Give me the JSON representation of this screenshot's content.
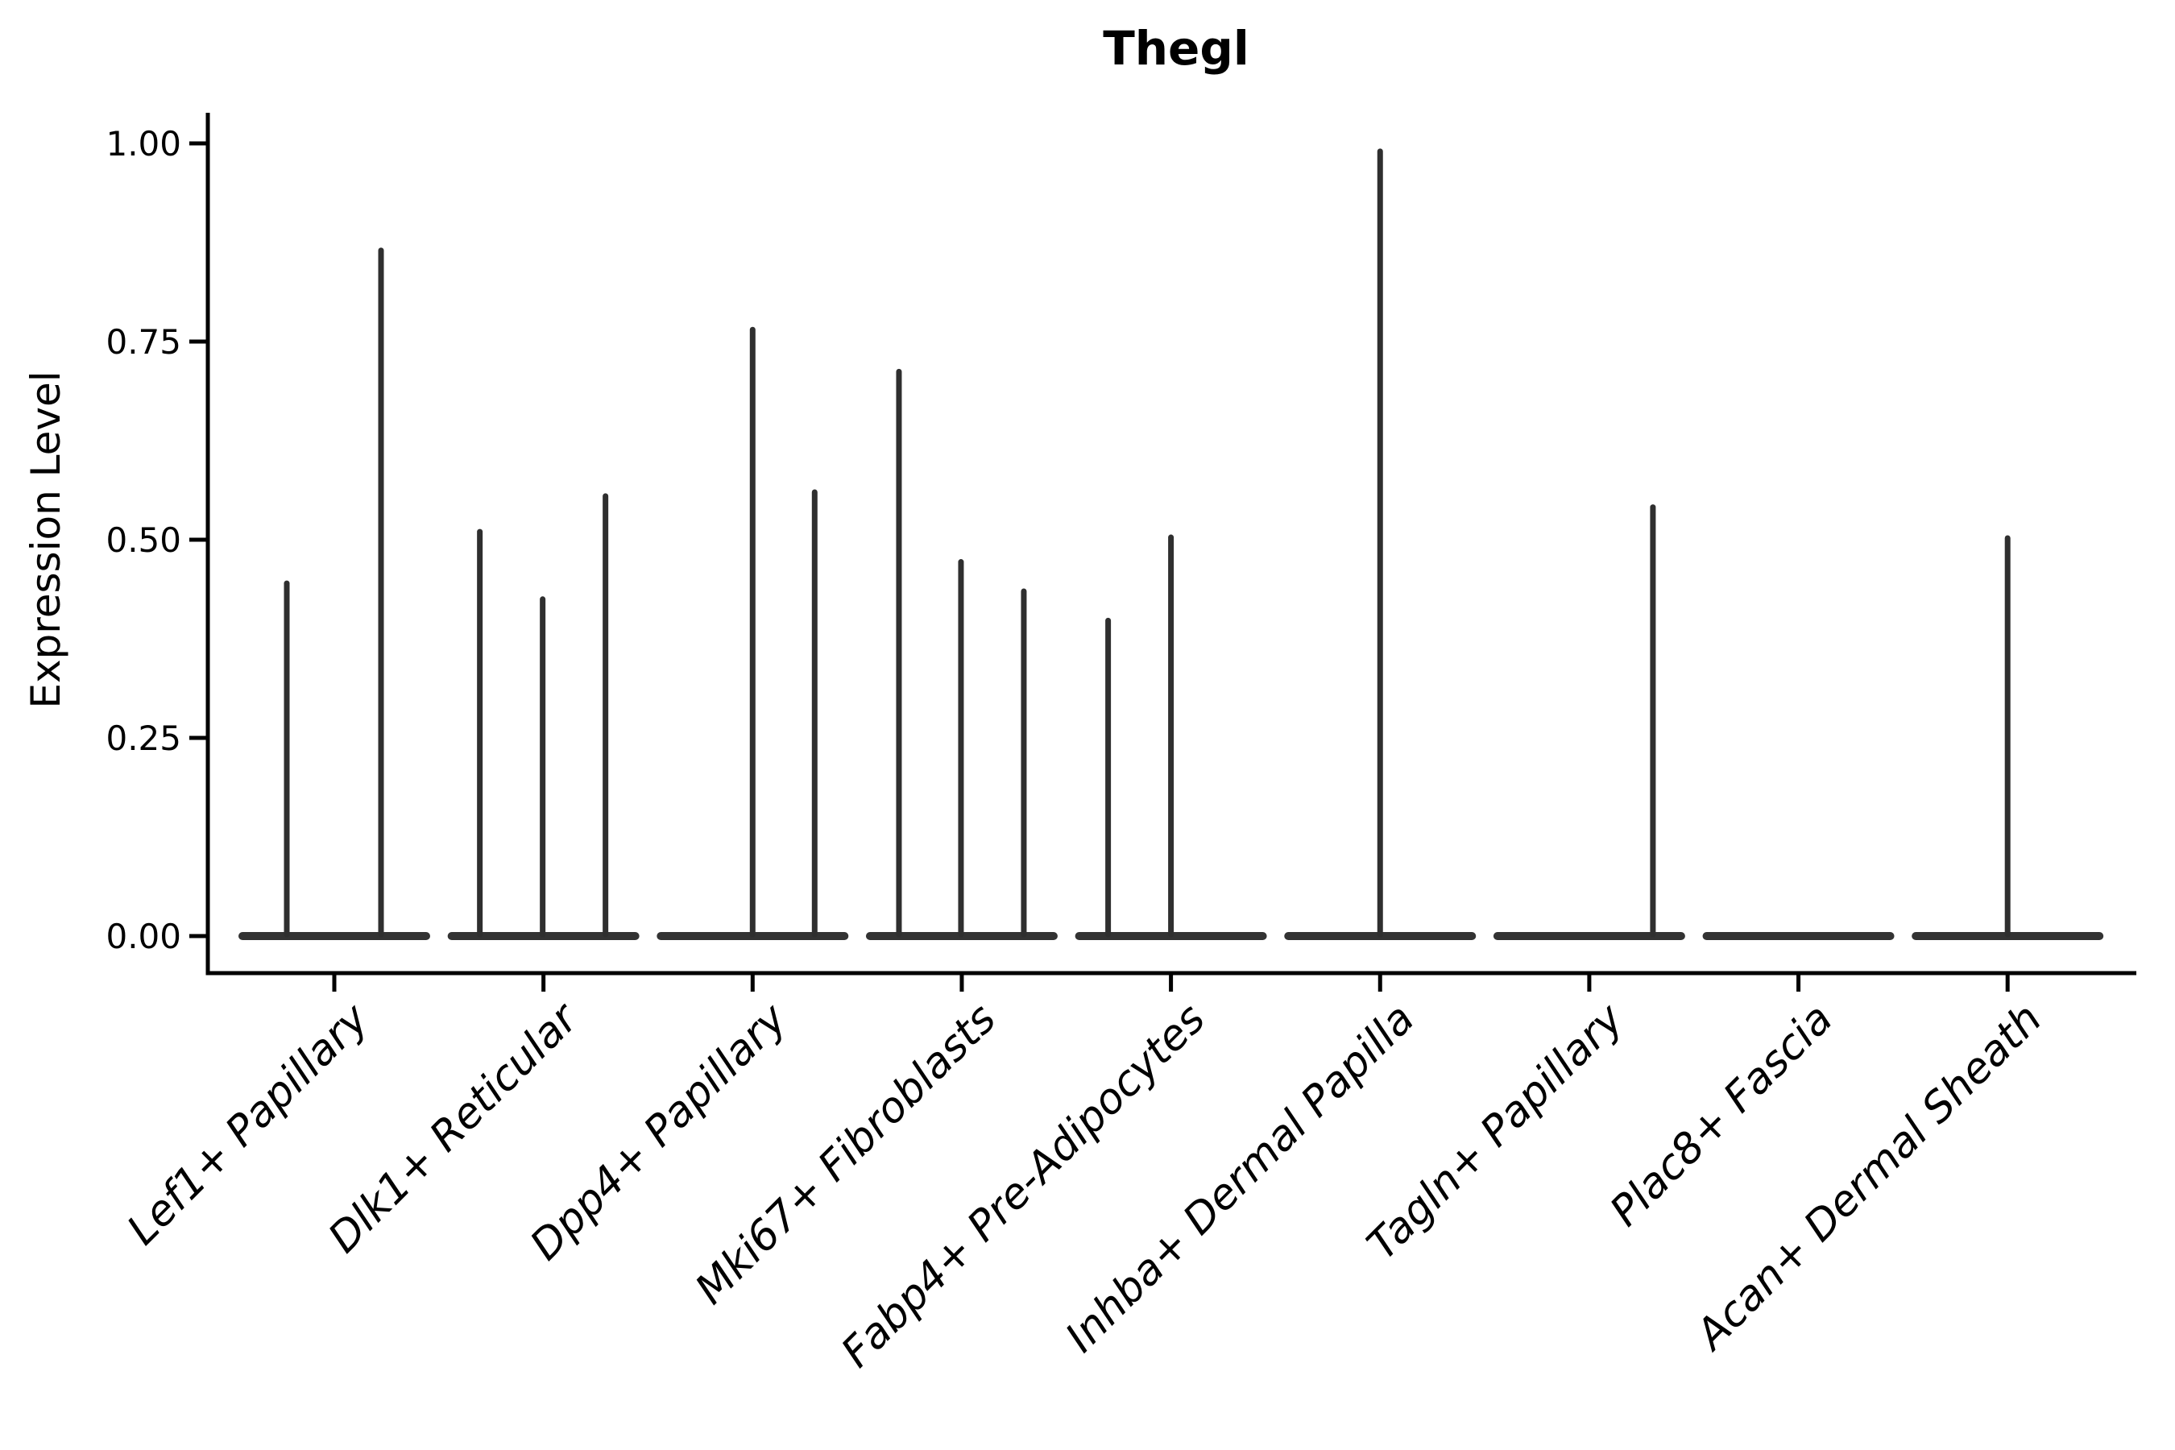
{
  "chart_data": {
    "type": "violin",
    "title": "Thegl",
    "xlabel": "",
    "ylabel": "Expression Level",
    "ylim": [
      0,
      1.05
    ],
    "yticks": {
      "values": [
        0.0,
        0.25,
        0.5,
        0.75,
        1.0
      ],
      "labels": [
        "0.00",
        "0.25",
        "0.50",
        "0.75",
        "1.00"
      ]
    },
    "grid": false,
    "legend": "none",
    "style_note": "needle-thin violins with wide flat bases at zero expression",
    "colors": {
      "violin": "#2f2f2f",
      "violin_base": "#333333",
      "axis": "#000000",
      "text": "#000000",
      "background": "#ffffff"
    },
    "categories": [
      {
        "label": "Lef1+ Papillary",
        "spikes": [
          {
            "dx": -59,
            "value": 0.445
          },
          {
            "dx": 58,
            "value": 0.865
          }
        ]
      },
      {
        "label": "Dlk1+ Reticular",
        "spikes": [
          {
            "dx": -79,
            "value": 0.51
          },
          {
            "dx": -1,
            "value": 0.425
          },
          {
            "dx": 77,
            "value": 0.555
          }
        ]
      },
      {
        "label": "Dpp4+ Papillary",
        "spikes": [
          {
            "dx": 0,
            "value": 0.765
          },
          {
            "dx": 77,
            "value": 0.56
          }
        ]
      },
      {
        "label": "Mki67+ Fibroblasts",
        "spikes": [
          {
            "dx": -78,
            "value": 0.712
          },
          {
            "dx": -1,
            "value": 0.472
          },
          {
            "dx": 77,
            "value": 0.435
          }
        ]
      },
      {
        "label": "Fabp4+ Pre-Adipocytes",
        "spikes": [
          {
            "dx": -78,
            "value": 0.398
          },
          {
            "dx": 0,
            "value": 0.503
          }
        ]
      },
      {
        "label": "Inhba+ Dermal Papilla",
        "spikes": [
          {
            "dx": 0,
            "value": 0.99
          }
        ]
      },
      {
        "label": "Tagln+ Papillary",
        "spikes": [
          {
            "dx": 79,
            "value": 0.541
          }
        ]
      },
      {
        "label": "Plac8+ Fascia",
        "spikes": []
      },
      {
        "label": "Acan+ Dermal Sheath",
        "spikes": [
          {
            "dx": 0,
            "value": 0.502
          }
        ]
      }
    ]
  }
}
